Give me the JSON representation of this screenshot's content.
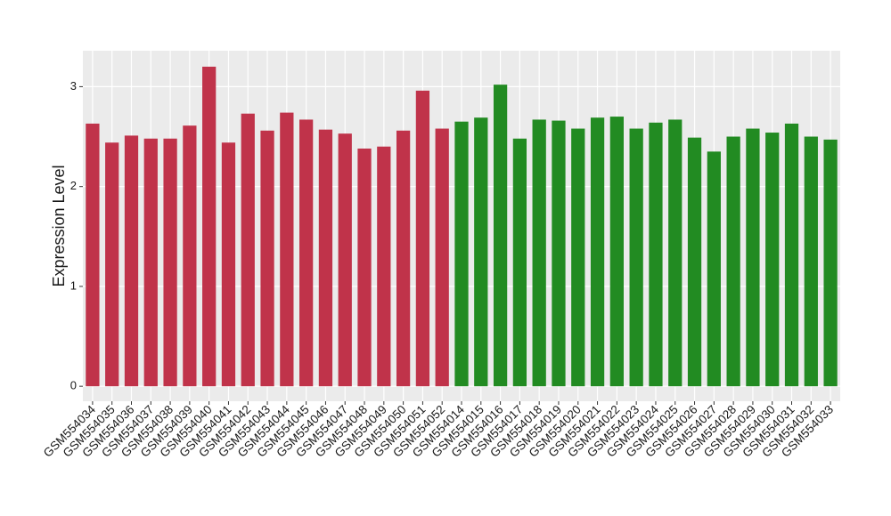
{
  "chart_data": {
    "type": "bar",
    "y_label": "Expression Level",
    "categories": [
      "GSM554034",
      "GSM554035",
      "GSM554036",
      "GSM554037",
      "GSM554038",
      "GSM554039",
      "GSM554040",
      "GSM554041",
      "GSM554042",
      "GSM554043",
      "GSM554044",
      "GSM554045",
      "GSM554046",
      "GSM554047",
      "GSM554048",
      "GSM554049",
      "GSM554050",
      "GSM554051",
      "GSM554052",
      "GSM554014",
      "GSM554015",
      "GSM554016",
      "GSM554017",
      "GSM554018",
      "GSM554019",
      "GSM554020",
      "GSM554021",
      "GSM554022",
      "GSM554023",
      "GSM554024",
      "GSM554025",
      "GSM554026",
      "GSM554027",
      "GSM554028",
      "GSM554029",
      "GSM554030",
      "GSM554031",
      "GSM554032",
      "GSM554033"
    ],
    "values": [
      2.63,
      2.44,
      2.51,
      2.48,
      2.48,
      2.61,
      3.2,
      2.44,
      2.73,
      2.56,
      2.74,
      2.67,
      2.57,
      2.53,
      2.38,
      2.4,
      2.56,
      2.96,
      2.58,
      2.65,
      2.69,
      3.02,
      2.48,
      2.67,
      2.66,
      2.58,
      2.69,
      2.7,
      2.58,
      2.64,
      2.67,
      2.49,
      2.35,
      2.5,
      2.58,
      2.54,
      2.63,
      2.5,
      2.47
    ],
    "colors": [
      "#c0334a",
      "#c0334a",
      "#c0334a",
      "#c0334a",
      "#c0334a",
      "#c0334a",
      "#c0334a",
      "#c0334a",
      "#c0334a",
      "#c0334a",
      "#c0334a",
      "#c0334a",
      "#c0334a",
      "#c0334a",
      "#c0334a",
      "#c0334a",
      "#c0334a",
      "#c0334a",
      "#c0334a",
      "#228b22",
      "#228b22",
      "#228b22",
      "#228b22",
      "#228b22",
      "#228b22",
      "#228b22",
      "#228b22",
      "#228b22",
      "#228b22",
      "#228b22",
      "#228b22",
      "#228b22",
      "#228b22",
      "#228b22",
      "#228b22",
      "#228b22",
      "#228b22",
      "#228b22",
      "#228b22"
    ],
    "ylim": [
      -0.15,
      3.36
    ],
    "yticks": [
      0,
      1,
      2,
      3
    ],
    "grid": true
  }
}
